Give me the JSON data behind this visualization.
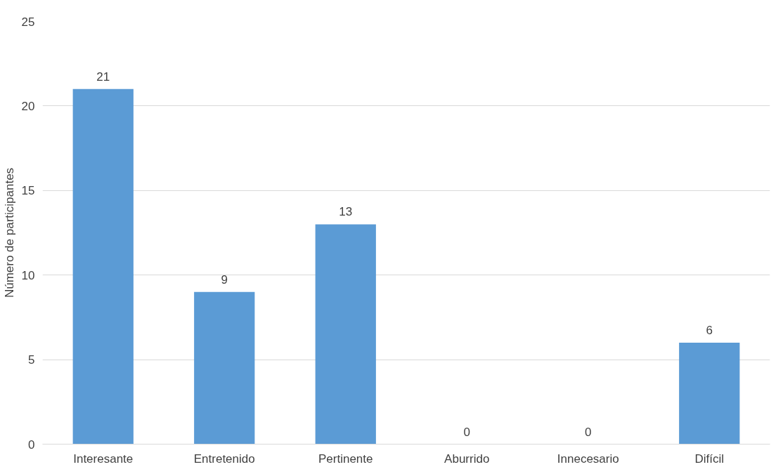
{
  "chart_data": {
    "type": "bar",
    "ylabel": "Número de participantes",
    "categories": [
      "Interesante",
      "Entretenido",
      "Pertinente",
      "Aburrido",
      "Innecesario",
      "Difícil"
    ],
    "values": [
      21,
      9,
      13,
      0,
      0,
      6
    ],
    "color": "#5b9bd5",
    "ylim": [
      0,
      25
    ],
    "yticks": [
      0,
      5,
      10,
      15,
      20,
      25
    ],
    "grid": "y",
    "data_labels": true
  }
}
